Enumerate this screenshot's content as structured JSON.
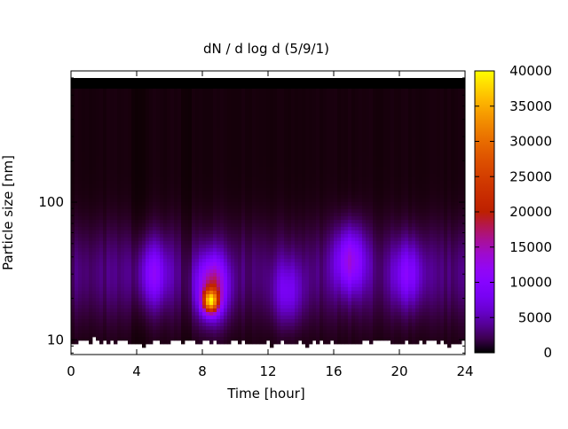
{
  "chart_data": {
    "type": "heatmap",
    "title": "dN / d log d (5/9/1)",
    "xlabel": "Time [hour]",
    "ylabel": "Particle size [nm]",
    "x_range": [
      0,
      24
    ],
    "x_ticks": [
      0,
      4,
      8,
      12,
      16,
      20,
      24
    ],
    "y_scale": "log",
    "y_range": [
      7.8,
      900
    ],
    "y_ticks": [
      10,
      100
    ],
    "grid": false,
    "colorbar": {
      "range": [
        0,
        40000
      ],
      "ticks": [
        0,
        5000,
        10000,
        15000,
        20000,
        25000,
        30000,
        35000,
        40000
      ],
      "colormap": "black-purple-red-yellow"
    },
    "features": [
      {
        "x": 8.5,
        "y": 19,
        "value": 31000
      },
      {
        "x": 8.6,
        "y": 24,
        "value": 18000
      },
      {
        "x": 5.0,
        "y": 30,
        "value": 9000
      },
      {
        "x": 13.2,
        "y": 22,
        "value": 7000
      },
      {
        "x": 17.0,
        "y": 38,
        "value": 12000
      },
      {
        "x": 20.5,
        "y": 30,
        "value": 8000
      }
    ]
  }
}
